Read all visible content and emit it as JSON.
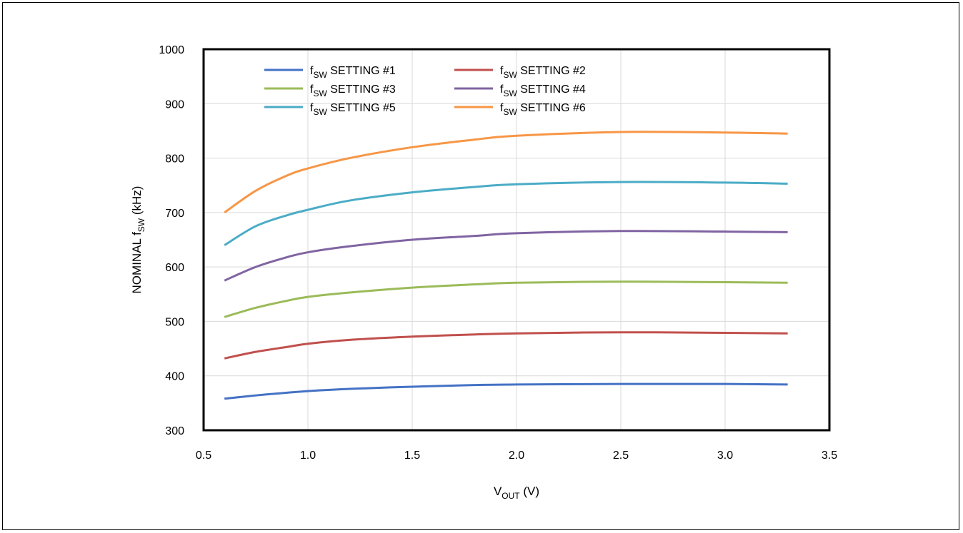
{
  "chart_data": {
    "type": "line",
    "title": "",
    "xlabel": {
      "main": "V",
      "sub": "OUT",
      "unit": " (V)"
    },
    "ylabel": {
      "pre": "NOMINAL f",
      "sub": "SW",
      "unit": " (kHz)"
    },
    "xlim": [
      0.5,
      3.5
    ],
    "ylim": [
      300,
      1000
    ],
    "x_ticks": [
      0.5,
      1.0,
      1.5,
      2.0,
      2.5,
      3.0,
      3.5
    ],
    "x_tick_labels": [
      "0.5",
      "1.0",
      "1.5",
      "2.0",
      "2.5",
      "3.0",
      "3.5"
    ],
    "y_ticks": [
      300,
      400,
      500,
      600,
      700,
      800,
      900,
      1000
    ],
    "y_tick_labels": [
      "300",
      "400",
      "500",
      "600",
      "700",
      "800",
      "900",
      "1000"
    ],
    "grid": true,
    "legend_position": "top",
    "x": [
      0.6,
      0.75,
      0.9,
      1.0,
      1.2,
      1.5,
      1.8,
      2.0,
      2.5,
      3.0,
      3.3
    ],
    "series": [
      {
        "name": {
          "pre": "f",
          "sub": "SW",
          "post": " SETTING #1"
        },
        "color": "#4472C4",
        "values": [
          358,
          364,
          369,
          372,
          376,
          380,
          383,
          384,
          385,
          385,
          384
        ]
      },
      {
        "name": {
          "pre": "f",
          "sub": "SW",
          "post": " SETTING #2"
        },
        "color": "#C0504D",
        "values": [
          432,
          444,
          453,
          459,
          466,
          472,
          476,
          478,
          480,
          479,
          478
        ]
      },
      {
        "name": {
          "pre": "f",
          "sub": "SW",
          "post": " SETTING #3"
        },
        "color": "#9BBB59",
        "values": [
          508,
          525,
          538,
          545,
          553,
          562,
          568,
          571,
          573,
          572,
          571
        ]
      },
      {
        "name": {
          "pre": "f",
          "sub": "SW",
          "post": " SETTING #4"
        },
        "color": "#8064A2",
        "values": [
          575,
          600,
          618,
          627,
          638,
          650,
          657,
          662,
          666,
          665,
          664
        ]
      },
      {
        "name": {
          "pre": "f",
          "sub": "SW",
          "post": " SETTING #5"
        },
        "color": "#4BACC6",
        "values": [
          640,
          675,
          695,
          705,
          722,
          737,
          747,
          752,
          756,
          755,
          753
        ]
      },
      {
        "name": {
          "pre": "f",
          "sub": "SW",
          "post": " SETTING #6"
        },
        "color": "#F79646",
        "values": [
          700,
          740,
          768,
          781,
          800,
          820,
          834,
          841,
          848,
          847,
          845
        ]
      }
    ]
  }
}
